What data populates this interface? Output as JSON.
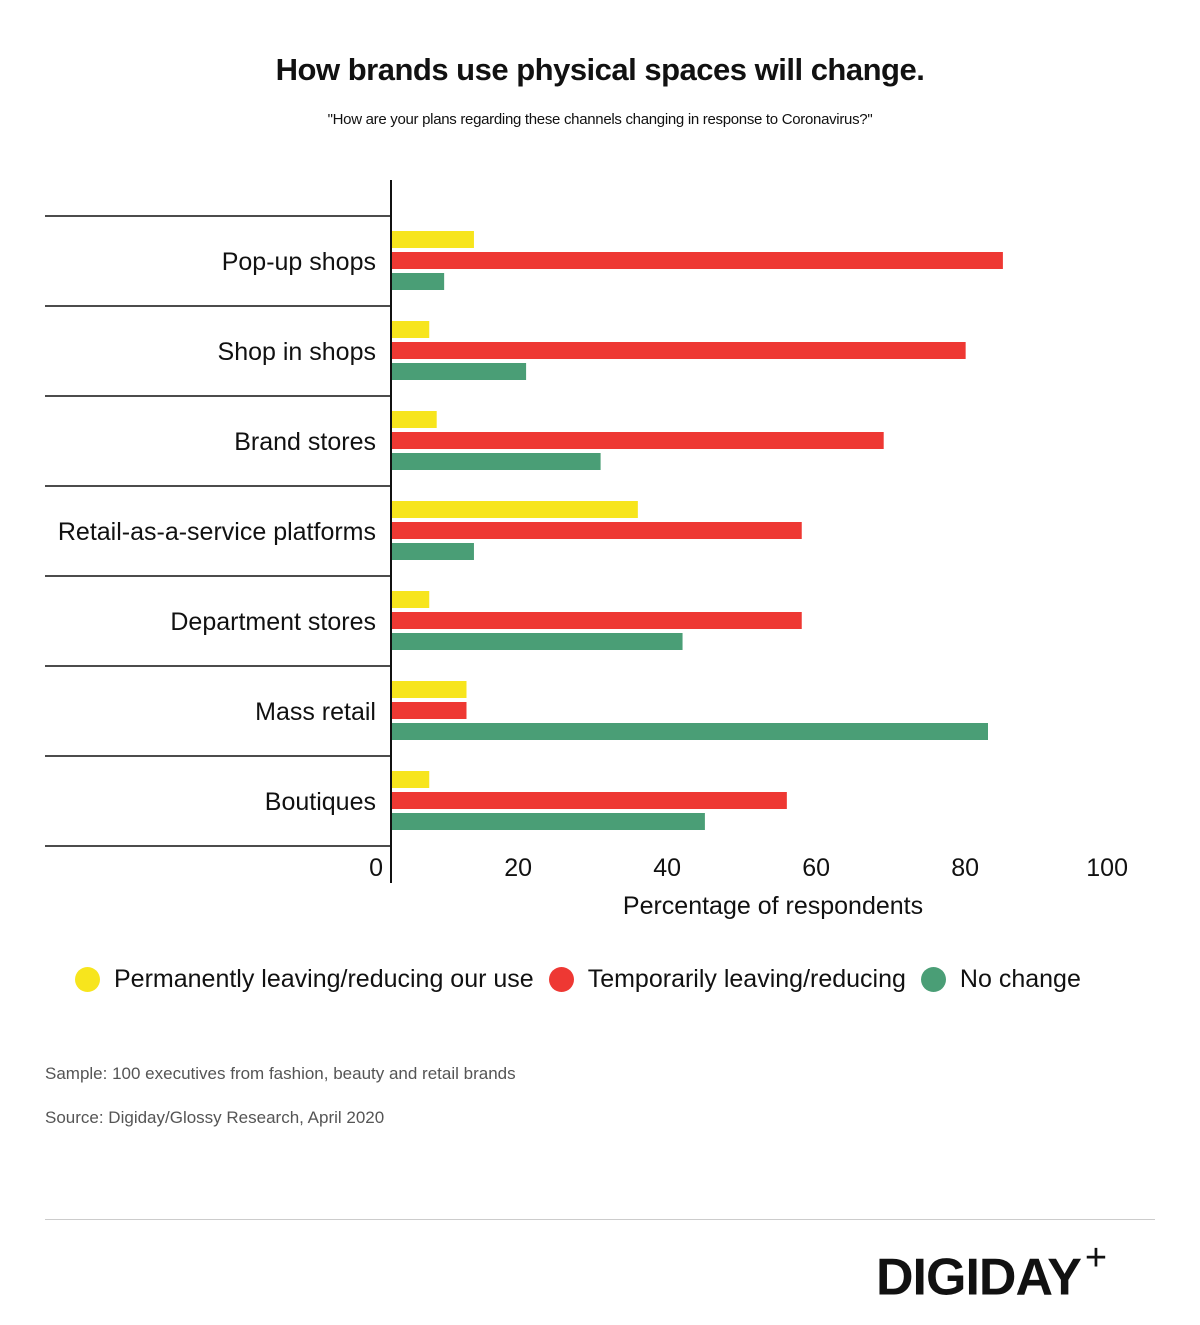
{
  "title": "How brands use physical spaces will change.",
  "subtitle": "\"How are your plans regarding these channels changing in response to Coronavirus?\"",
  "chart_data": {
    "type": "bar",
    "orientation": "horizontal",
    "categories": [
      "Pop-up shops",
      "Shop in shops",
      "Brand stores",
      "Retail-as-a-service platforms",
      "Department stores",
      "Mass retail",
      "Boutiques"
    ],
    "series": [
      {
        "name": "Permanently leaving/reducing our use",
        "color": "#f7e51d",
        "values": [
          11,
          5,
          6,
          33,
          5,
          10,
          5
        ]
      },
      {
        "name": "Temporarily leaving/reducing",
        "color": "#ee3833",
        "values": [
          82,
          77,
          66,
          55,
          55,
          10,
          53
        ]
      },
      {
        "name": "No change",
        "color": "#4a9e76",
        "values": [
          7,
          18,
          28,
          11,
          39,
          80,
          42
        ]
      }
    ],
    "xlabel": "Percentage of respondents",
    "xlim": [
      0,
      100
    ],
    "xticks": [
      "0",
      "20",
      "40",
      "60",
      "80",
      "100"
    ],
    "grid": false,
    "legend": "bottom"
  },
  "notes": {
    "sample": "Sample: 100 executives from fashion, beauty and retail brands",
    "source": "Source: Digiday/Glossy Research, April 2020"
  },
  "logo": {
    "text": "DIGIDAY",
    "plus": "+"
  }
}
